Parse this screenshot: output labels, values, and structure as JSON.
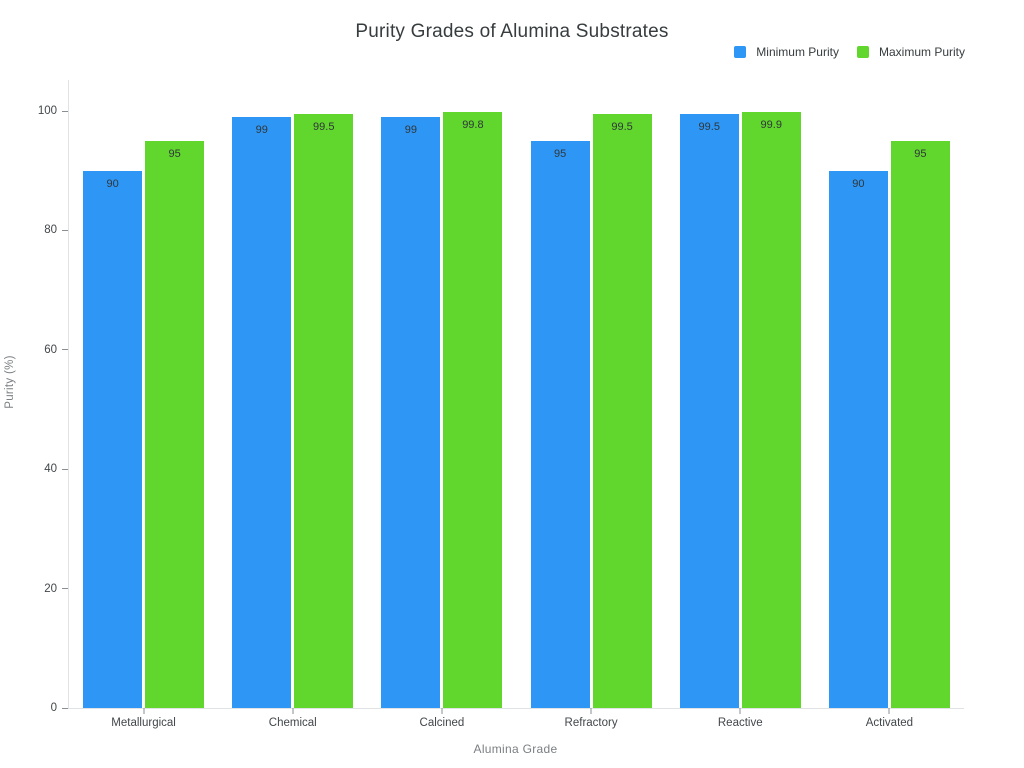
{
  "chart_data": {
    "type": "bar",
    "title": "Purity Grades of Alumina Substrates",
    "xlabel": "Alumina Grade",
    "ylabel": "Purity (%)",
    "categories": [
      "Metallurgical",
      "Chemical",
      "Calcined",
      "Refractory",
      "Reactive",
      "Activated"
    ],
    "series": [
      {
        "name": "Minimum Purity",
        "color": "#2E96F5",
        "values": [
          90,
          99,
          99,
          95,
          99.5,
          90
        ]
      },
      {
        "name": "Maximum Purity",
        "color": "#61D62D",
        "values": [
          95,
          99.5,
          99.8,
          99.5,
          99.9,
          95
        ]
      }
    ],
    "yticks": [
      0,
      20,
      40,
      60,
      80,
      100
    ],
    "ylim": [
      0,
      105.2
    ],
    "grid": false,
    "legend_position": "top-right",
    "value_labels": "inside-top",
    "axis_line_color": "#dfe3e6",
    "tick_mark_color": "#8a8f93",
    "label_text_color": "#30373a"
  }
}
